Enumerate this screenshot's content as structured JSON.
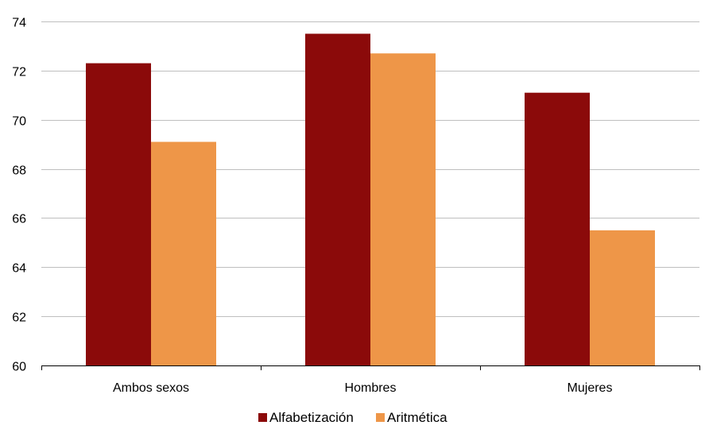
{
  "chart_data": {
    "type": "bar",
    "categories": [
      "Ambos sexos",
      "Hombres",
      "Mujeres"
    ],
    "series": [
      {
        "name": "Alfabetización",
        "values": [
          72.3,
          73.5,
          71.1
        ],
        "color": "#8B0A0A"
      },
      {
        "name": "Aritmética",
        "values": [
          69.1,
          72.7,
          65.5
        ],
        "color": "#EE9648"
      }
    ],
    "ylim": [
      60,
      74
    ],
    "yticks": [
      60,
      62,
      64,
      66,
      68,
      70,
      72,
      74
    ],
    "grid": true,
    "legend_position": "bottom",
    "colors": {
      "grid": "#BFBFBF",
      "axis": "#000000"
    }
  }
}
